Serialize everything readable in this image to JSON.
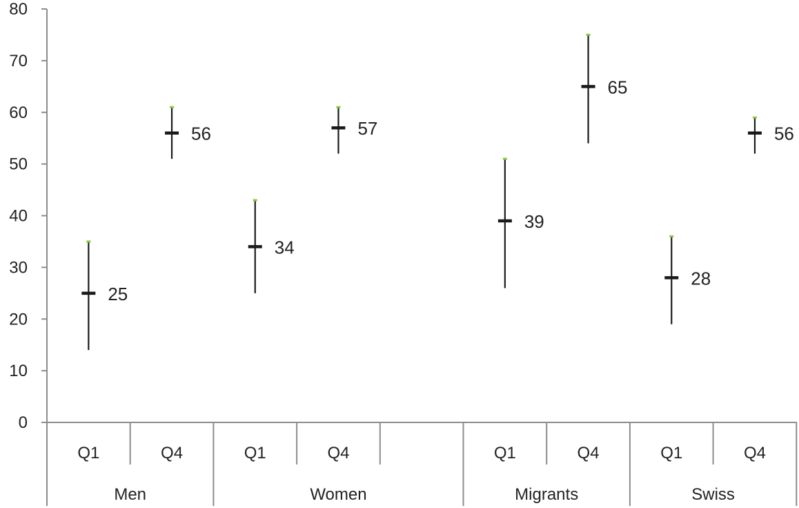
{
  "chart_data": {
    "type": "error-bar",
    "title": "",
    "xlabel": "",
    "ylabel": "",
    "ylim": [
      0,
      80
    ],
    "yticks": [
      0,
      10,
      20,
      30,
      40,
      50,
      60,
      70,
      80
    ],
    "grid": false,
    "groups": [
      {
        "name": "Men",
        "slots": 2
      },
      {
        "name": "Women",
        "slots": 3
      },
      {
        "name": "Migrants",
        "slots": 2
      },
      {
        "name": "Swiss",
        "slots": 2
      }
    ],
    "slot_labels": [
      "Q1",
      "Q4",
      "Q1",
      "Q4",
      "",
      "Q1",
      "Q4",
      "Q1",
      "Q4"
    ],
    "points": [
      {
        "group": "Men",
        "category": "Q1",
        "value": 25,
        "low": 14,
        "high": 35
      },
      {
        "group": "Men",
        "category": "Q4",
        "value": 56,
        "low": 51,
        "high": 61
      },
      {
        "group": "Women",
        "category": "Q1",
        "value": 34,
        "low": 25,
        "high": 43
      },
      {
        "group": "Women",
        "category": "Q4",
        "value": 57,
        "low": 52,
        "high": 61
      },
      {
        "group": "Migrants",
        "category": "Q1",
        "value": 39,
        "low": 26,
        "high": 51
      },
      {
        "group": "Migrants",
        "category": "Q4",
        "value": 65,
        "low": 54,
        "high": 75
      },
      {
        "group": "Swiss",
        "category": "Q1",
        "value": 28,
        "low": 19,
        "high": 36
      },
      {
        "group": "Swiss",
        "category": "Q4",
        "value": 56,
        "low": 52,
        "high": 59
      }
    ],
    "colors": {
      "marker": "#1a1a1a",
      "whisker_cap": "#8dc63f",
      "axis": "#8c8c8c",
      "text": "#222222"
    }
  }
}
